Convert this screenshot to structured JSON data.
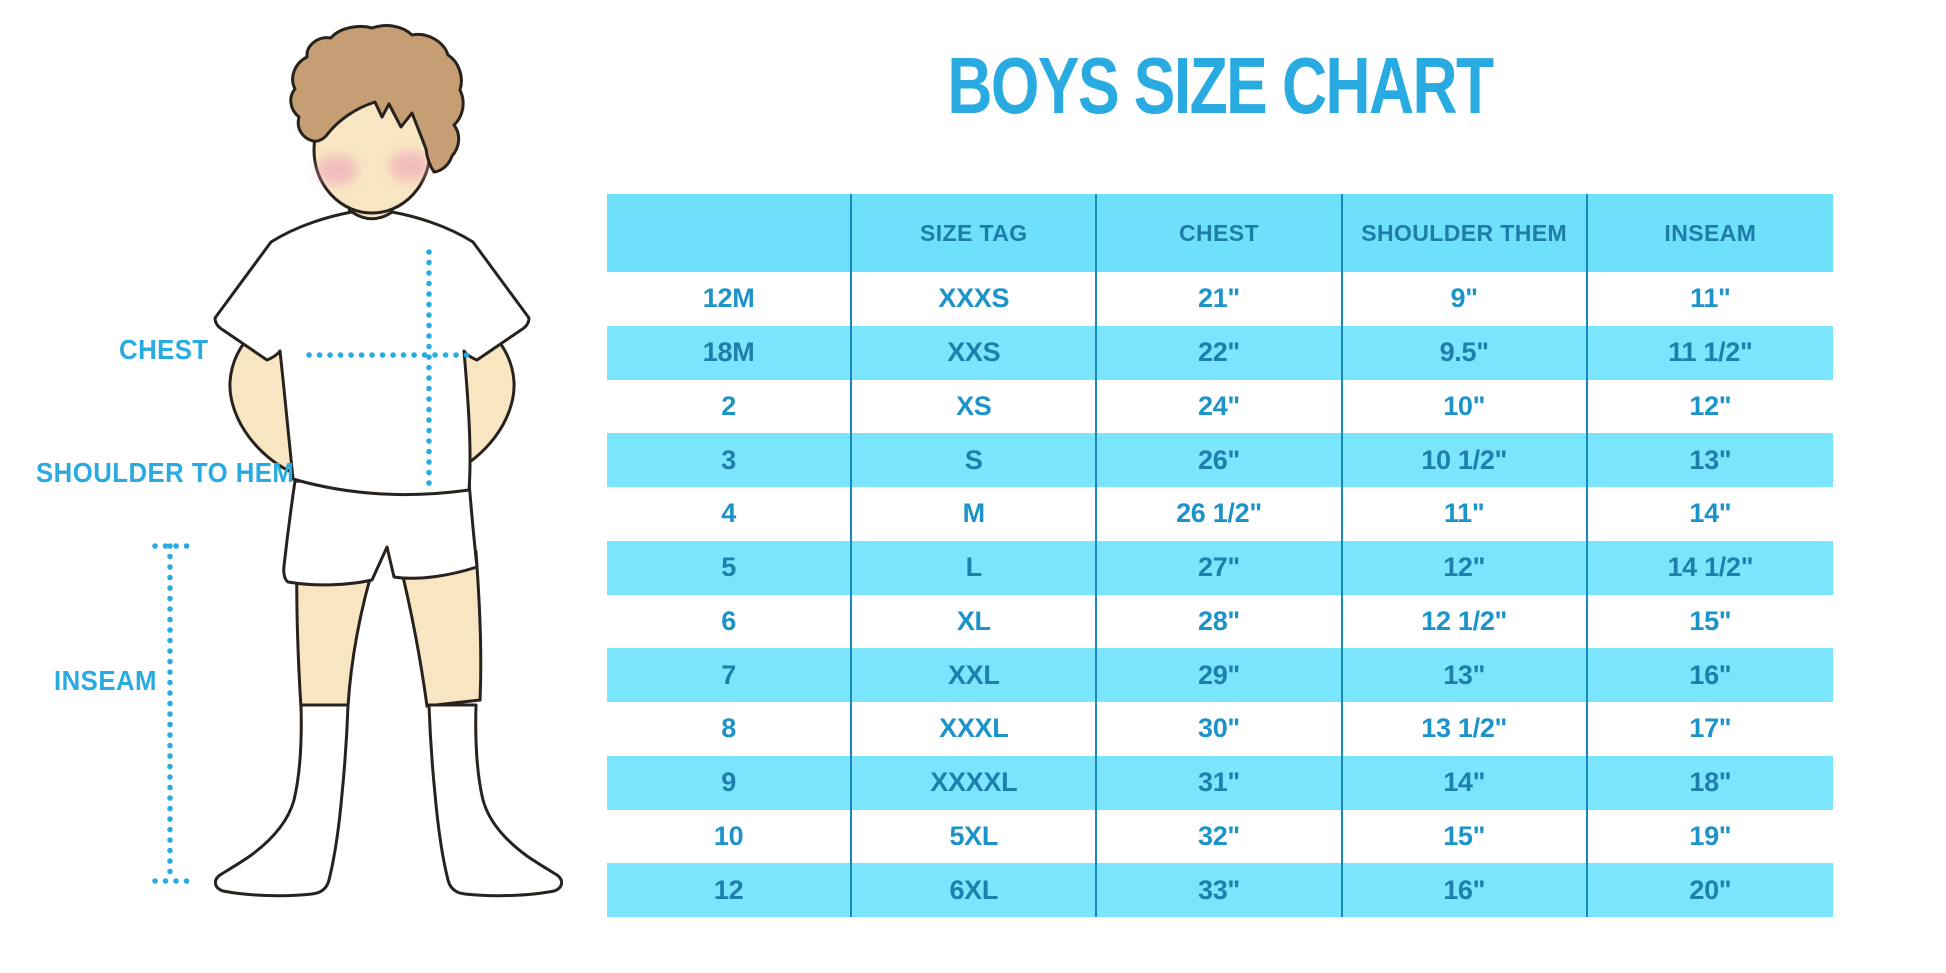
{
  "title": "BOYS SIZE CHART",
  "figure_labels": {
    "chest": "CHEST",
    "shoulder_to_hem": "SHOULDER TO HEM",
    "inseam": "INSEAM"
  },
  "illustration": {
    "name": "boy-measurement-figure",
    "parts": [
      "hair",
      "face",
      "cheeks",
      "neck",
      "t-shirt",
      "shorts",
      "legs",
      "socks"
    ],
    "measurement_lines": [
      "chest-dotted-line",
      "shoulder-to-hem-dotted-line",
      "inseam-dotted-line"
    ]
  },
  "chart_data": {
    "type": "table",
    "title": "BOYS SIZE CHART",
    "columns": [
      "",
      "SIZE TAG",
      "CHEST",
      "SHOULDER THEM",
      "INSEAM"
    ],
    "rows": [
      [
        "12M",
        "XXXS",
        "21\"",
        "9\"",
        "11\""
      ],
      [
        "18M",
        "XXS",
        "22\"",
        "9.5\"",
        "11 1/2\""
      ],
      [
        "2",
        "XS",
        "24\"",
        "10\"",
        "12\""
      ],
      [
        "3",
        "S",
        "26\"",
        "10 1/2\"",
        "13\""
      ],
      [
        "4",
        "M",
        "26 1/2\"",
        "11\"",
        "14\""
      ],
      [
        "5",
        "L",
        "27\"",
        "12\"",
        "14 1/2\""
      ],
      [
        "6",
        "XL",
        "28\"",
        "12 1/2\"",
        "15\""
      ],
      [
        "7",
        "XXL",
        "29\"",
        "13\"",
        "16\""
      ],
      [
        "8",
        "XXXL",
        "30\"",
        "13 1/2\"",
        "17\""
      ],
      [
        "9",
        "XXXXL",
        "31\"",
        "14\"",
        "18\""
      ],
      [
        "10",
        "5XL",
        "32\"",
        "15\"",
        "19\""
      ],
      [
        "12",
        "6XL",
        "33\"",
        "16\"",
        "20\""
      ]
    ],
    "layout": {
      "header_background": "light blue",
      "row_striping": "white / light blue alternating",
      "column_dividers": true,
      "horizontal_borders": false
    }
  },
  "colors": {
    "accent_blue": "#29abe2",
    "header_bg": "#6fe0f9",
    "row_alt_bg": "#7ae5fc",
    "divider": "#1689bd",
    "header_text": "#1d7ca8",
    "cell_text_on_white": "#1c93c9",
    "cell_text_on_blue": "#1e7fad",
    "skin": "#f8e5c2",
    "hair": "#c59e73",
    "cheek": "#efa5ba",
    "outline": "#27221d"
  }
}
